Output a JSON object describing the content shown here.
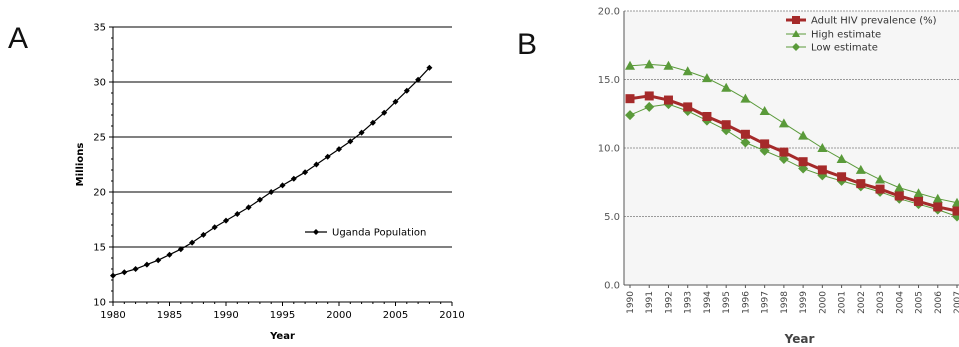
{
  "panels": {
    "a_letter": "A",
    "b_letter": "B"
  },
  "chart_data": [
    {
      "type": "line",
      "panel": "A",
      "title": "",
      "xlabel": "Year",
      "ylabel": "Millions",
      "xlim": [
        1980,
        2010
      ],
      "ylim": [
        10,
        35
      ],
      "xticks": [
        1980,
        1985,
        1990,
        1995,
        2000,
        2005,
        2010
      ],
      "yticks": [
        10,
        15,
        20,
        25,
        30,
        35
      ],
      "grid": "horizontal",
      "legend_position": "right",
      "series": [
        {
          "name": "Uganda Population",
          "color": "#000000",
          "marker": "diamond",
          "x": [
            1980,
            1981,
            1982,
            1983,
            1984,
            1985,
            1986,
            1987,
            1988,
            1989,
            1990,
            1991,
            1992,
            1993,
            1994,
            1995,
            1996,
            1997,
            1998,
            1999,
            2000,
            2001,
            2002,
            2003,
            2004,
            2005,
            2006,
            2007,
            2008
          ],
          "y": [
            12.4,
            12.7,
            13.0,
            13.4,
            13.8,
            14.3,
            14.8,
            15.4,
            16.1,
            16.8,
            17.4,
            18.0,
            18.6,
            19.3,
            20.0,
            20.6,
            21.2,
            21.8,
            22.5,
            23.2,
            23.9,
            24.6,
            25.4,
            26.3,
            27.2,
            28.2,
            29.2,
            30.2,
            31.3
          ]
        }
      ]
    },
    {
      "type": "line",
      "panel": "B",
      "title": "",
      "xlabel": "Year",
      "ylabel": "",
      "ylim": [
        0,
        20
      ],
      "yticks": [
        "0.0",
        "5.0",
        "10.0",
        "15.0",
        "20.0"
      ],
      "categories": [
        "1990",
        "1991",
        "1992",
        "1993",
        "1994",
        "1995",
        "1996",
        "1997",
        "1998",
        "1999",
        "2000",
        "2001",
        "2002",
        "2003",
        "2004",
        "2005",
        "2006",
        "2007"
      ],
      "grid": "horizontal",
      "legend_position": "top-right",
      "series": [
        {
          "name": "Adult HIV prevalence (%)",
          "color": "#a52a2a",
          "marker": "square",
          "values": [
            13.6,
            13.8,
            13.5,
            13.0,
            12.3,
            11.7,
            11.0,
            10.3,
            9.7,
            9.0,
            8.4,
            7.9,
            7.4,
            7.0,
            6.5,
            6.1,
            5.7,
            5.4
          ]
        },
        {
          "name": "High estimate",
          "color": "#5a9a3a",
          "marker": "triangle",
          "values": [
            16.0,
            16.1,
            16.0,
            15.6,
            15.1,
            14.4,
            13.6,
            12.7,
            11.8,
            10.9,
            10.0,
            9.2,
            8.4,
            7.7,
            7.1,
            6.7,
            6.3,
            6.0
          ]
        },
        {
          "name": "Low estimate",
          "color": "#5a9a3a",
          "marker": "diamond",
          "values": [
            12.4,
            13.0,
            13.2,
            12.7,
            12.0,
            11.3,
            10.4,
            9.8,
            9.2,
            8.5,
            8.0,
            7.6,
            7.2,
            6.8,
            6.3,
            5.9,
            5.5,
            5.0
          ]
        }
      ]
    }
  ]
}
